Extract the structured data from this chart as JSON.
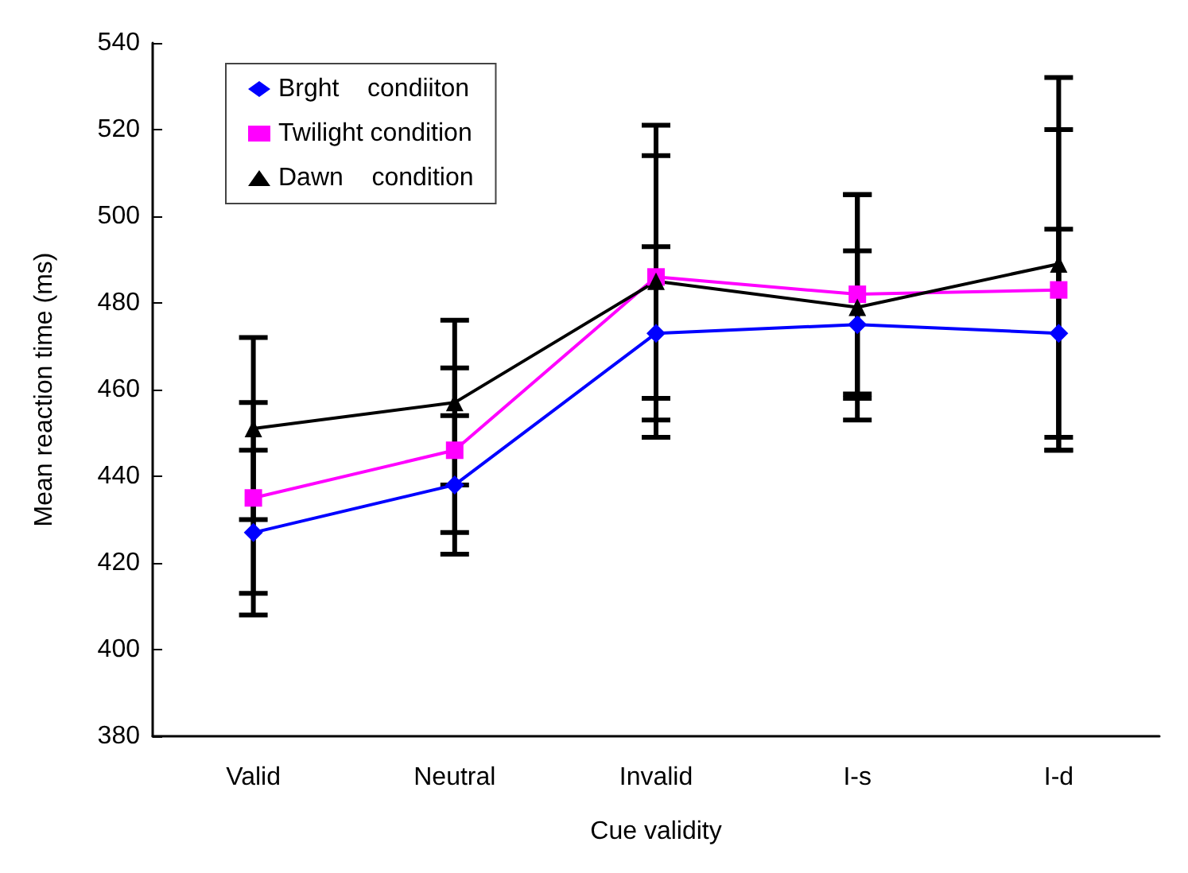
{
  "chart_data": {
    "type": "line",
    "xlabel": "Cue validity",
    "ylabel": "Mean reaction time (ms)",
    "categories": [
      "Valid",
      "Neutral",
      "Invalid",
      "I-s",
      "I-d"
    ],
    "series": [
      {
        "name": "Brght    condiiton",
        "color": "#0000ff",
        "marker": "diamond",
        "values": [
          427,
          438,
          473,
          475,
          473
        ],
        "errors": [
          19,
          16,
          20,
          17,
          24
        ]
      },
      {
        "name": "Twilight condition",
        "color": "#ff00ff",
        "marker": "square",
        "values": [
          435,
          446,
          486,
          482,
          483
        ],
        "errors": [
          22,
          19,
          28,
          23,
          37
        ]
      },
      {
        "name": "Dawn    condition",
        "color": "#000000",
        "marker": "triangle",
        "values": [
          451,
          457,
          485,
          479,
          489
        ],
        "errors": [
          21,
          19,
          36,
          26,
          43
        ]
      }
    ],
    "ylim": [
      380,
      540
    ],
    "yticks": [
      380,
      400,
      420,
      440,
      460,
      480,
      500,
      520,
      540
    ],
    "grid": false,
    "legend": "top left",
    "line_style": "solid"
  }
}
